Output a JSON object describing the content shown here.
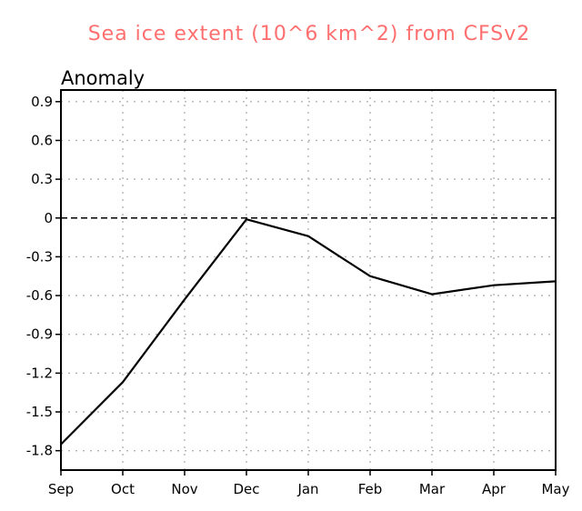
{
  "colors": {
    "title": "#ff6f6f",
    "line": "#000000",
    "grid": "#b4b4b4",
    "frame": "#000000"
  },
  "chart_data": {
    "type": "line",
    "title": "Sea ice extent (10^6 km^2) from CFSv2",
    "ylabel": "Anomaly",
    "xlabel": "",
    "categories": [
      "Sep",
      "Oct",
      "Nov",
      "Dec",
      "Jan",
      "Feb",
      "Mar",
      "Apr",
      "May"
    ],
    "series": [
      {
        "values": [
          -1.75,
          -1.27,
          -0.63,
          -0.01,
          -0.14,
          -0.45,
          -0.59,
          -0.52,
          -0.49
        ]
      }
    ],
    "yticks": [
      "0.9",
      "0.6",
      "0.3",
      "0",
      "-0.3",
      "-0.6",
      "-0.9",
      "-1.2",
      "-1.5",
      "-1.8"
    ],
    "ylim": [
      -1.95,
      0.99
    ],
    "zero_line": "dashed",
    "grid": "dotted"
  }
}
